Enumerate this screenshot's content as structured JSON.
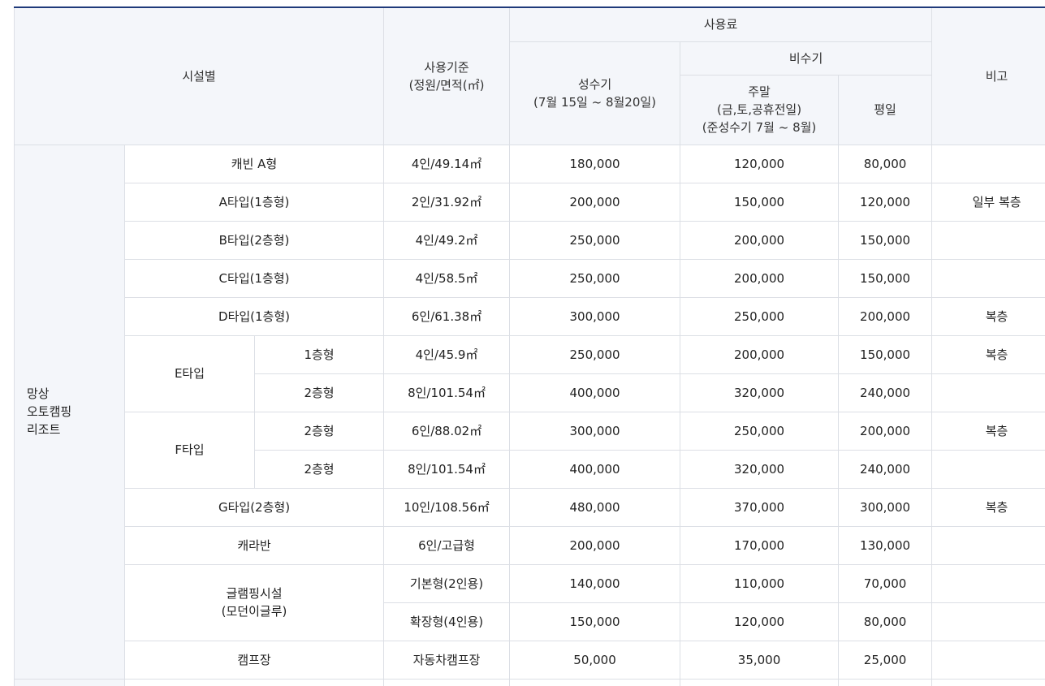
{
  "header": {
    "facility": "시설별",
    "standard_line1": "사용기준",
    "standard_line2": "(정원/면적(㎡)",
    "usage_fee": "사용료",
    "off_peak": "비수기",
    "peak_line1": "성수기",
    "peak_line2": "(7월 15일 ~ 8월20일)",
    "weekend_line1": "주말",
    "weekend_line2": "(금,토,공휴전일)",
    "weekend_line3": "(준성수기 7월 ~ 8월)",
    "weekday": "평일",
    "remarks": "비고"
  },
  "group": {
    "line1": "망상",
    "line2": "오토캠핑",
    "line3": "리조트"
  },
  "rows": [
    {
      "name": "캐빈 A형",
      "standard": "4인/49.14㎡",
      "peak": "180,000",
      "weekend": "120,000",
      "weekday": "80,000",
      "remark": ""
    },
    {
      "name": "A타입(1층형)",
      "standard": "2인/31.92㎡",
      "peak": "200,000",
      "weekend": "150,000",
      "weekday": "120,000",
      "remark": "일부 복층"
    },
    {
      "name": "B타입(2층형)",
      "standard": "4인/49.2㎡",
      "peak": "250,000",
      "weekend": "200,000",
      "weekday": "150,000",
      "remark": ""
    },
    {
      "name": "C타입(1층형)",
      "standard": "4인/58.5㎡",
      "peak": "250,000",
      "weekend": "200,000",
      "weekday": "150,000",
      "remark": ""
    },
    {
      "name": "D타입(1층형)",
      "standard": "6인/61.38㎡",
      "peak": "300,000",
      "weekend": "250,000",
      "weekday": "200,000",
      "remark": "복층"
    }
  ],
  "e_type": {
    "name": "E타입",
    "rows": [
      {
        "sub": "1층형",
        "standard": "4인/45.9㎡",
        "peak": "250,000",
        "weekend": "200,000",
        "weekday": "150,000",
        "remark": "복층"
      },
      {
        "sub": "2층형",
        "standard": "8인/101.54㎡",
        "peak": "400,000",
        "weekend": "320,000",
        "weekday": "240,000",
        "remark": ""
      }
    ]
  },
  "f_type": {
    "name": "F타입",
    "rows": [
      {
        "sub": "2층형",
        "standard": "6인/88.02㎡",
        "peak": "300,000",
        "weekend": "250,000",
        "weekday": "200,000",
        "remark": "복층"
      },
      {
        "sub": "2층형",
        "standard": "8인/101.54㎡",
        "peak": "400,000",
        "weekend": "320,000",
        "weekday": "240,000",
        "remark": ""
      }
    ]
  },
  "g_type": {
    "name": "G타입(2층형)",
    "standard": "10인/108.56㎡",
    "peak": "480,000",
    "weekend": "370,000",
    "weekday": "300,000",
    "remark": "복층"
  },
  "caravan": {
    "name": "캐라반",
    "standard": "6인/고급형",
    "peak": "200,000",
    "weekend": "170,000",
    "weekday": "130,000",
    "remark": ""
  },
  "glamping": {
    "name_line1": "글램핑시설",
    "name_line2": "(모던이글루)",
    "rows": [
      {
        "standard": "기본형(2인용)",
        "peak": "140,000",
        "weekend": "110,000",
        "weekday": "70,000",
        "remark": ""
      },
      {
        "standard": "확장형(4인용)",
        "peak": "150,000",
        "weekend": "120,000",
        "weekday": "80,000",
        "remark": ""
      }
    ]
  },
  "campsite": {
    "name": "캠프장",
    "standard": "자동차캠프장",
    "peak": "50,000",
    "weekend": "35,000",
    "weekday": "25,000",
    "remark": ""
  },
  "colors": {
    "header_bg": "#f4f6fa",
    "top_border": "#1f3a7a",
    "grid_line": "#dcdfe5"
  }
}
